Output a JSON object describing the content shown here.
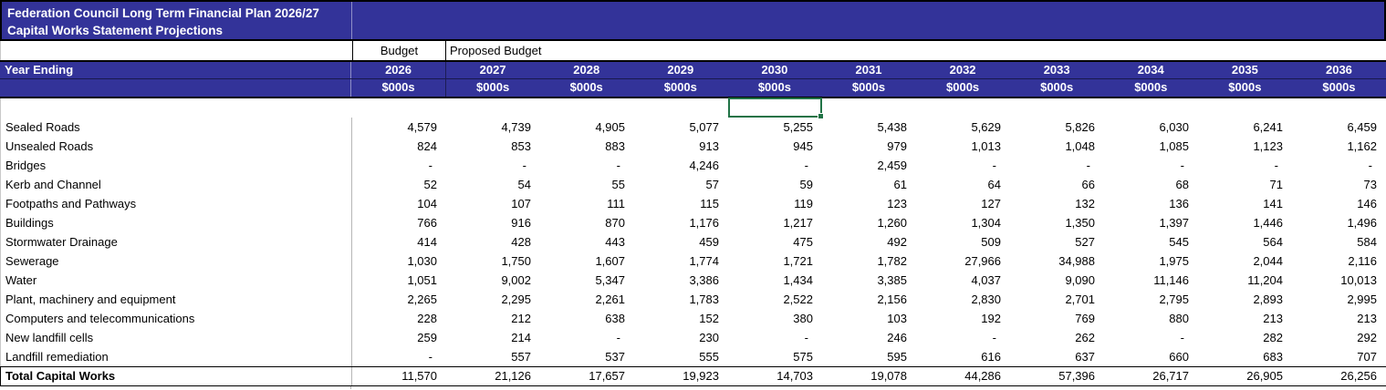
{
  "colors": {
    "header_bg": "#333399",
    "header_text": "#ffffff",
    "selection_border": "#217346",
    "gridline": "#b7b7b7"
  },
  "title": {
    "line1": "Federation Council Long Term Financial Plan 2026/27",
    "line2": "Capital Works Statement Projections"
  },
  "header": {
    "budget_label": "Budget",
    "proposed_budget_label": "Proposed Budget",
    "year_ending_label": "Year Ending",
    "years": [
      "2026",
      "2027",
      "2028",
      "2029",
      "2030",
      "2031",
      "2032",
      "2033",
      "2034",
      "2035",
      "2036"
    ],
    "units": "$000s"
  },
  "selection": {
    "column_year": "2030"
  },
  "table": {
    "rows": [
      {
        "label": "Sealed Roads",
        "values": [
          "4,579",
          "4,739",
          "4,905",
          "5,077",
          "5,255",
          "5,438",
          "5,629",
          "5,826",
          "6,030",
          "6,241",
          "6,459"
        ]
      },
      {
        "label": "Unsealed Roads",
        "values": [
          "824",
          "853",
          "883",
          "913",
          "945",
          "979",
          "1,013",
          "1,048",
          "1,085",
          "1,123",
          "1,162"
        ]
      },
      {
        "label": "Bridges",
        "values": [
          "-",
          "-",
          "-",
          "4,246",
          "-",
          "2,459",
          "-",
          "-",
          "-",
          "-",
          "-"
        ]
      },
      {
        "label": "Kerb and Channel",
        "values": [
          "52",
          "54",
          "55",
          "57",
          "59",
          "61",
          "64",
          "66",
          "68",
          "71",
          "73"
        ]
      },
      {
        "label": "Footpaths and Pathways",
        "values": [
          "104",
          "107",
          "111",
          "115",
          "119",
          "123",
          "127",
          "132",
          "136",
          "141",
          "146"
        ]
      },
      {
        "label": "Buildings",
        "values": [
          "766",
          "916",
          "870",
          "1,176",
          "1,217",
          "1,260",
          "1,304",
          "1,350",
          "1,397",
          "1,446",
          "1,496"
        ]
      },
      {
        "label": "Stormwater Drainage",
        "values": [
          "414",
          "428",
          "443",
          "459",
          "475",
          "492",
          "509",
          "527",
          "545",
          "564",
          "584"
        ]
      },
      {
        "label": "Sewerage",
        "values": [
          "1,030",
          "1,750",
          "1,607",
          "1,774",
          "1,721",
          "1,782",
          "27,966",
          "34,988",
          "1,975",
          "2,044",
          "2,116"
        ]
      },
      {
        "label": "Water",
        "values": [
          "1,051",
          "9,002",
          "5,347",
          "3,386",
          "1,434",
          "3,385",
          "4,037",
          "9,090",
          "11,146",
          "11,204",
          "10,013"
        ]
      },
      {
        "label": "Plant, machinery and equipment",
        "values": [
          "2,265",
          "2,295",
          "2,261",
          "1,783",
          "2,522",
          "2,156",
          "2,830",
          "2,701",
          "2,795",
          "2,893",
          "2,995"
        ]
      },
      {
        "label": "Computers and telecommunications",
        "values": [
          "228",
          "212",
          "638",
          "152",
          "380",
          "103",
          "192",
          "769",
          "880",
          "213",
          "213"
        ]
      },
      {
        "label": "New landfill cells",
        "values": [
          "259",
          "214",
          "-",
          "230",
          "-",
          "246",
          "-",
          "262",
          "-",
          "282",
          "292"
        ]
      },
      {
        "label": "Landfill remediation",
        "values": [
          "-",
          "557",
          "537",
          "555",
          "575",
          "595",
          "616",
          "637",
          "660",
          "683",
          "707"
        ]
      }
    ],
    "total": {
      "label": "Total Capital Works",
      "values": [
        "11,570",
        "21,126",
        "17,657",
        "19,923",
        "14,703",
        "19,078",
        "44,286",
        "57,396",
        "26,717",
        "26,905",
        "26,256"
      ]
    }
  }
}
